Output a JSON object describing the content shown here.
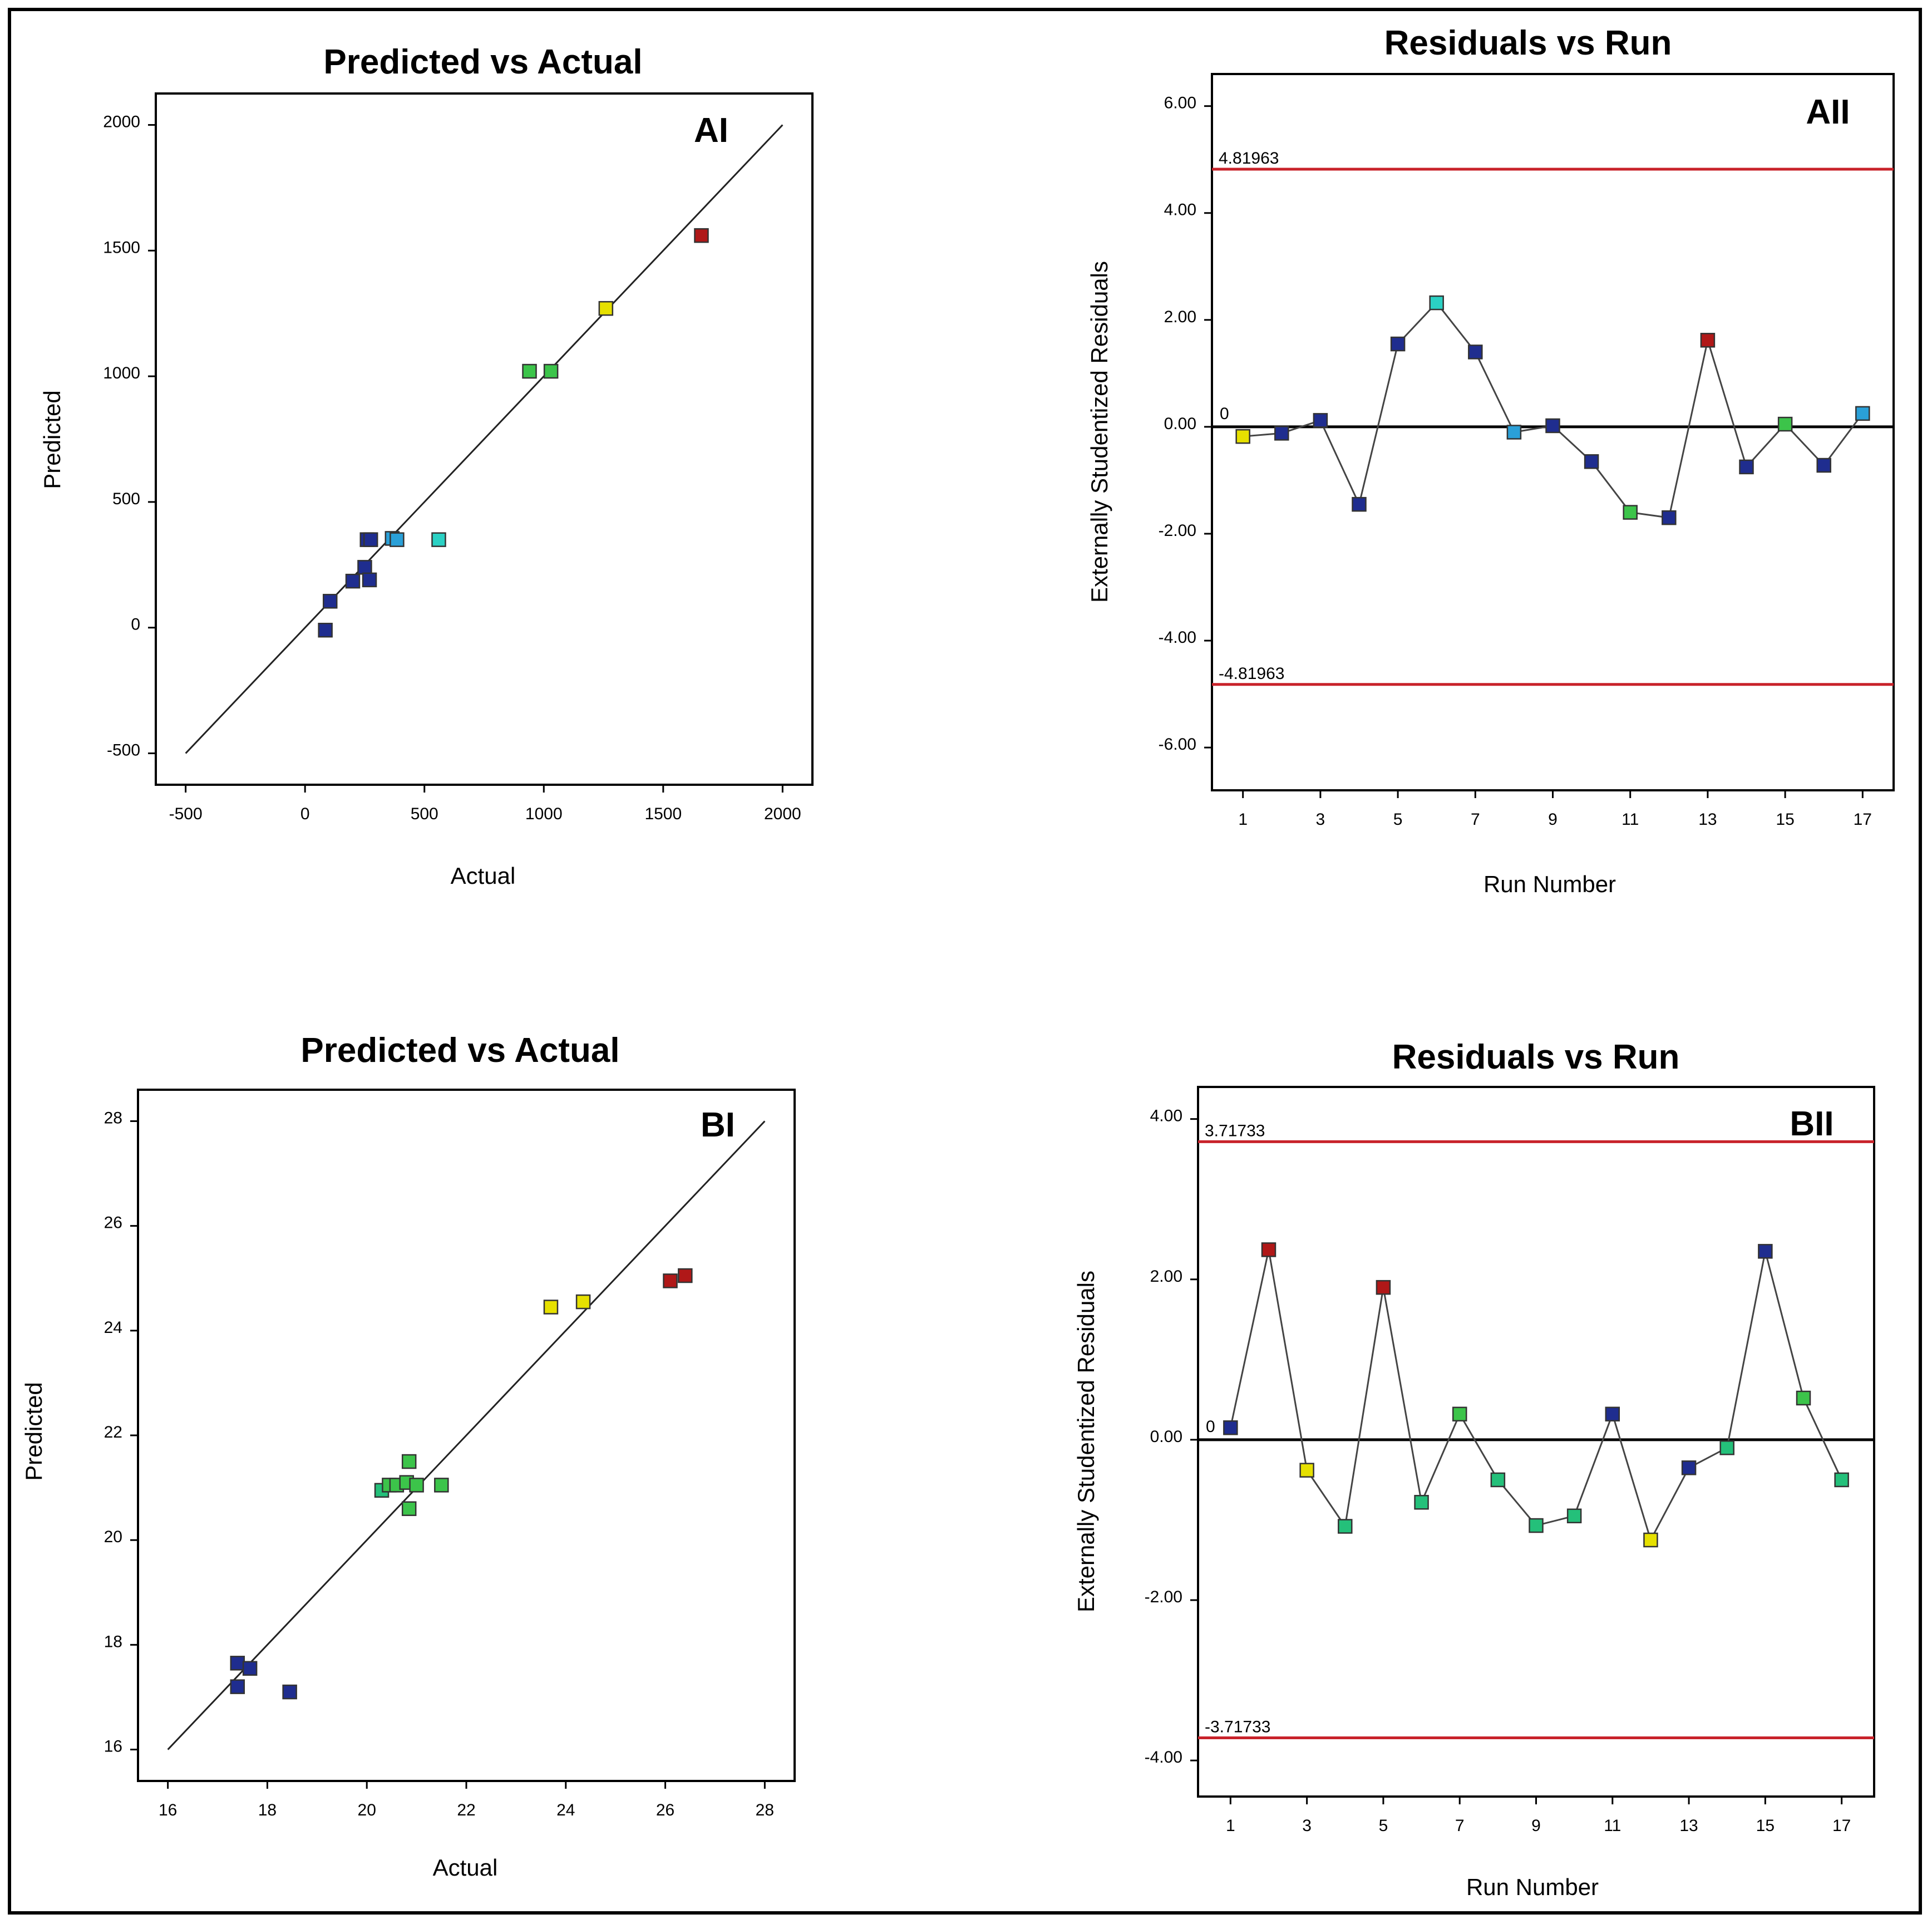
{
  "colors": {
    "limit_line": "#c8222a",
    "blue": "#1f2d8f",
    "light_blue": "#2aa0d8",
    "cyan": "#2bd1c4",
    "green": "#3cc44a",
    "teal_green": "#24c07a",
    "yellow": "#e6e000",
    "red": "#b01818"
  },
  "chart_data": [
    {
      "id": "AI",
      "type": "scatter",
      "title": "Predicted vs Actual",
      "panel_label": "AI",
      "xlabel": "Actual",
      "ylabel": "Predicted",
      "xlim": [
        -500,
        2000
      ],
      "ylim": [
        -500,
        2000
      ],
      "xticks": [
        -500,
        0,
        500,
        1000,
        1500,
        2000
      ],
      "yticks": [
        -500,
        0,
        500,
        1000,
        1500,
        2000
      ],
      "xtick_labels": [
        "-500",
        "0",
        "500",
        "1000",
        "1500",
        "2000"
      ],
      "ytick_labels": [
        "-500",
        "0",
        "500",
        "1000",
        "1500",
        "2000"
      ],
      "reference_line": [
        [
          -500,
          -500
        ],
        [
          2000,
          2000
        ]
      ],
      "points": [
        {
          "x": 85,
          "y": -10,
          "color": "blue"
        },
        {
          "x": 105,
          "y": 105,
          "color": "blue"
        },
        {
          "x": 200,
          "y": 185,
          "color": "blue"
        },
        {
          "x": 250,
          "y": 240,
          "color": "blue"
        },
        {
          "x": 270,
          "y": 190,
          "color": "blue"
        },
        {
          "x": 260,
          "y": 350,
          "color": "blue"
        },
        {
          "x": 275,
          "y": 350,
          "color": "blue"
        },
        {
          "x": 365,
          "y": 355,
          "color": "light_blue"
        },
        {
          "x": 385,
          "y": 350,
          "color": "light_blue"
        },
        {
          "x": 560,
          "y": 350,
          "color": "cyan"
        },
        {
          "x": 940,
          "y": 1020,
          "color": "green"
        },
        {
          "x": 1030,
          "y": 1020,
          "color": "green"
        },
        {
          "x": 1260,
          "y": 1270,
          "color": "yellow"
        },
        {
          "x": 1660,
          "y": 1560,
          "color": "red"
        }
      ]
    },
    {
      "id": "AII",
      "type": "line",
      "title": "Residuals vs Run",
      "panel_label": "AII",
      "xlabel": "Run Number",
      "ylabel": "Externally Studentized Residuals",
      "xlim": [
        0.2,
        17.8
      ],
      "ylim": [
        -6.8,
        6.6
      ],
      "xticks": [
        1,
        3,
        5,
        7,
        9,
        11,
        13,
        15,
        17
      ],
      "xtick_labels": [
        "1",
        "3",
        "5",
        "7",
        "9",
        "11",
        "13",
        "15",
        "17"
      ],
      "yticks": [
        -6,
        -4,
        -2,
        0,
        2,
        4,
        6
      ],
      "ytick_labels": [
        "-6.00",
        "-4.00",
        "-2.00",
        "0.00",
        "2.00",
        "4.00",
        "6.00"
      ],
      "zero_label": "0",
      "limits": [
        4.81963,
        -4.81963
      ],
      "limit_labels": [
        "4.81963",
        "-4.81963"
      ],
      "points": [
        {
          "x": 1,
          "y": -0.18,
          "color": "yellow"
        },
        {
          "x": 2,
          "y": -0.12,
          "color": "blue"
        },
        {
          "x": 3,
          "y": 0.12,
          "color": "blue"
        },
        {
          "x": 4,
          "y": -1.45,
          "color": "blue"
        },
        {
          "x": 5,
          "y": 1.55,
          "color": "blue"
        },
        {
          "x": 6,
          "y": 2.32,
          "color": "cyan"
        },
        {
          "x": 7,
          "y": 1.4,
          "color": "blue"
        },
        {
          "x": 8,
          "y": -0.1,
          "color": "light_blue"
        },
        {
          "x": 9,
          "y": 0.02,
          "color": "blue"
        },
        {
          "x": 10,
          "y": -0.65,
          "color": "blue"
        },
        {
          "x": 11,
          "y": -1.6,
          "color": "green"
        },
        {
          "x": 12,
          "y": -1.7,
          "color": "blue"
        },
        {
          "x": 13,
          "y": 1.62,
          "color": "red"
        },
        {
          "x": 14,
          "y": -0.75,
          "color": "blue"
        },
        {
          "x": 15,
          "y": 0.05,
          "color": "green"
        },
        {
          "x": 16,
          "y": -0.72,
          "color": "blue"
        },
        {
          "x": 17,
          "y": 0.25,
          "color": "light_blue"
        }
      ]
    },
    {
      "id": "BI",
      "type": "scatter",
      "title": "Predicted vs Actual",
      "panel_label": "BI",
      "xlabel": "Actual",
      "ylabel": "Predicted",
      "xlim": [
        16,
        28
      ],
      "ylim": [
        16,
        28
      ],
      "xticks": [
        16,
        18,
        20,
        22,
        24,
        26,
        28
      ],
      "yticks": [
        16,
        18,
        20,
        22,
        24,
        26,
        28
      ],
      "xtick_labels": [
        "16",
        "18",
        "20",
        "22",
        "24",
        "26",
        "28"
      ],
      "ytick_labels": [
        "16",
        "18",
        "20",
        "22",
        "24",
        "26",
        "28"
      ],
      "reference_line": [
        [
          16,
          16
        ],
        [
          28,
          28
        ]
      ],
      "points": [
        {
          "x": 17.4,
          "y": 17.65,
          "color": "blue"
        },
        {
          "x": 17.65,
          "y": 17.55,
          "color": "blue"
        },
        {
          "x": 17.4,
          "y": 17.2,
          "color": "blue"
        },
        {
          "x": 18.45,
          "y": 17.1,
          "color": "blue"
        },
        {
          "x": 20.3,
          "y": 20.95,
          "color": "teal_green"
        },
        {
          "x": 20.45,
          "y": 21.05,
          "color": "green"
        },
        {
          "x": 20.6,
          "y": 21.05,
          "color": "green"
        },
        {
          "x": 20.8,
          "y": 21.1,
          "color": "green"
        },
        {
          "x": 21.0,
          "y": 21.05,
          "color": "green"
        },
        {
          "x": 20.85,
          "y": 21.5,
          "color": "green"
        },
        {
          "x": 20.85,
          "y": 20.6,
          "color": "green"
        },
        {
          "x": 21.5,
          "y": 21.05,
          "color": "green"
        },
        {
          "x": 23.7,
          "y": 24.45,
          "color": "yellow"
        },
        {
          "x": 24.35,
          "y": 24.55,
          "color": "yellow"
        },
        {
          "x": 26.1,
          "y": 24.95,
          "color": "red"
        },
        {
          "x": 26.4,
          "y": 25.05,
          "color": "red"
        }
      ]
    },
    {
      "id": "BII",
      "type": "line",
      "title": "Residuals vs Run",
      "panel_label": "BII",
      "xlabel": "Run Number",
      "ylabel": "Externally Studentized Residuals",
      "xlim": [
        0.15,
        17.85
      ],
      "ylim": [
        -4.45,
        4.4
      ],
      "xticks": [
        1,
        3,
        5,
        7,
        9,
        11,
        13,
        15,
        17
      ],
      "xtick_labels": [
        "1",
        "3",
        "5",
        "7",
        "9",
        "11",
        "13",
        "15",
        "17"
      ],
      "yticks": [
        -4,
        -2,
        0,
        2,
        4
      ],
      "ytick_labels": [
        "-4.00",
        "-2.00",
        "0.00",
        "2.00",
        "4.00"
      ],
      "zero_label": "0",
      "limits": [
        3.71733,
        -3.71733
      ],
      "limit_labels": [
        "3.71733",
        "-3.71733"
      ],
      "points": [
        {
          "x": 1,
          "y": 0.15,
          "color": "blue"
        },
        {
          "x": 2,
          "y": 2.37,
          "color": "red"
        },
        {
          "x": 3,
          "y": -0.38,
          "color": "yellow"
        },
        {
          "x": 4,
          "y": -1.08,
          "color": "teal_green"
        },
        {
          "x": 5,
          "y": 1.9,
          "color": "red"
        },
        {
          "x": 6,
          "y": -0.78,
          "color": "teal_green"
        },
        {
          "x": 7,
          "y": 0.32,
          "color": "green"
        },
        {
          "x": 8,
          "y": -0.5,
          "color": "teal_green"
        },
        {
          "x": 9,
          "y": -1.07,
          "color": "teal_green"
        },
        {
          "x": 10,
          "y": -0.95,
          "color": "teal_green"
        },
        {
          "x": 11,
          "y": 0.32,
          "color": "blue"
        },
        {
          "x": 12,
          "y": -1.25,
          "color": "yellow"
        },
        {
          "x": 13,
          "y": -0.35,
          "color": "blue"
        },
        {
          "x": 14,
          "y": -0.1,
          "color": "teal_green"
        },
        {
          "x": 15,
          "y": 2.35,
          "color": "blue"
        },
        {
          "x": 16,
          "y": 0.52,
          "color": "green"
        },
        {
          "x": 17,
          "y": -0.5,
          "color": "teal_green"
        }
      ]
    }
  ]
}
